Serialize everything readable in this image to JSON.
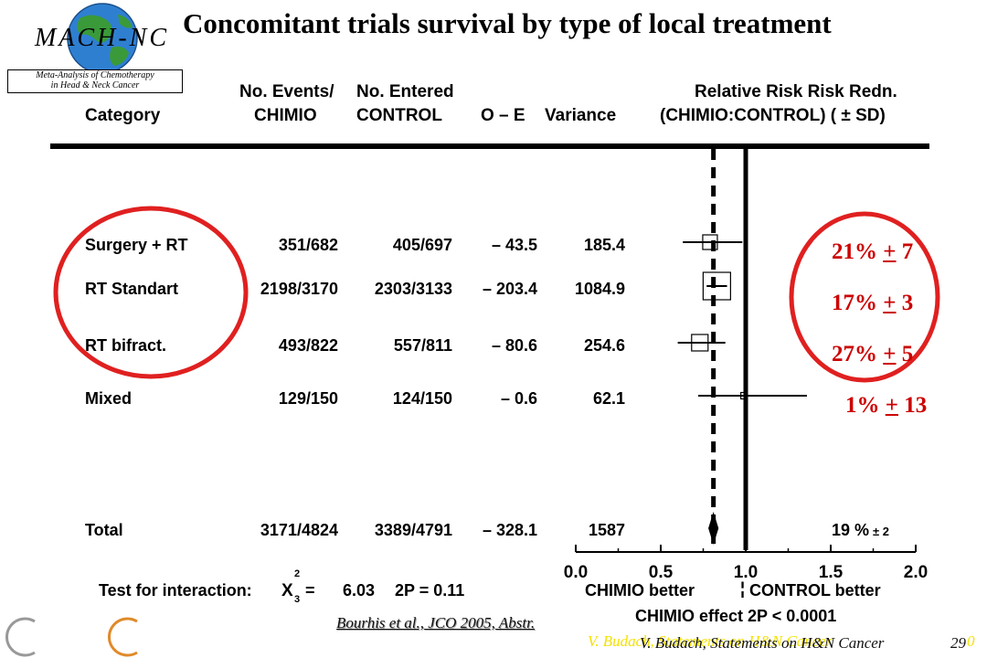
{
  "logo": {
    "name": "MACH-NC",
    "caption_line1": "Meta-Analysis of Chemotherapy",
    "caption_line2": "in Head & Neck Cancer"
  },
  "title": "Concomitant trials survival by type of local treatment",
  "headers": {
    "category": "Category",
    "events_top": "No. Events/",
    "events_bottom": "CHIMIO",
    "entered_top": "No. Entered",
    "entered_bottom": "CONTROL",
    "oe": "O – E",
    "variance": "Variance",
    "rr_top": "Relative  Risk Risk  Redn.",
    "rr_bottom": "(CHIMIO:CONTROL) (",
    "rr_sd": "± SD)"
  },
  "chart_data": {
    "type": "forest",
    "x_axis": {
      "ticks": [
        "0.0",
        "0.5",
        "1.0",
        "1.5",
        "2.0"
      ],
      "tick_values": [
        0.0,
        0.5,
        1.0,
        1.5,
        2.0
      ],
      "range": [
        0.0,
        2.0
      ],
      "label_left": "CHIMIO  better",
      "label_right": "CONTROL  better",
      "effect_label": "CHIMIO  effect  2P < 0.0001"
    },
    "null_line": 1.0,
    "overall_line": 0.81,
    "rows": [
      {
        "category": "Surgery  +  RT",
        "events": "351/682",
        "entered": "405/697",
        "oe": "– 43.5",
        "variance": "185.4",
        "hr": 0.79,
        "ci_low": 0.63,
        "ci_high": 0.98,
        "box_size": 16,
        "reduction": "21%",
        "pm": "+",
        "sd": "7"
      },
      {
        "category": "RT  Standart",
        "events": "2198/3170",
        "entered": "2303/3133",
        "oe": "– 203.4",
        "variance": "1084.9",
        "hr": 0.83,
        "ci_low": 0.77,
        "ci_high": 0.89,
        "box_size": 30,
        "reduction": "17%",
        "pm": "+",
        "sd": "3"
      },
      {
        "category": "RT  bifract.",
        "events": "493/822",
        "entered": "557/811",
        "oe": "– 80.6",
        "variance": "254.6",
        "hr": 0.73,
        "ci_low": 0.6,
        "ci_high": 0.88,
        "box_size": 18,
        "reduction": "27%",
        "pm": "+",
        "sd": "5"
      },
      {
        "category": "Mixed",
        "events": "129/150",
        "entered": "124/150",
        "oe": "– 0.6",
        "variance": "62.1",
        "hr": 0.99,
        "ci_low": 0.72,
        "ci_high": 1.36,
        "box_size": 7,
        "reduction": "1%",
        "pm": "+",
        "sd": "13"
      }
    ],
    "total": {
      "category": "Total",
      "events": "3171/4824",
      "entered": "3389/4791",
      "oe": "– 328.1",
      "variance": "1587",
      "hr": 0.81,
      "ci_low": 0.78,
      "ci_high": 0.84,
      "reduction": "19 %",
      "sd": "± 2"
    }
  },
  "interaction": {
    "label": "Test  for  interaction:",
    "stat_symbol": "X",
    "sup": "2",
    "sub": "3",
    "eq": "=",
    "value": "6.03",
    "p": "2P = 0.11"
  },
  "citation": "Bourhis et al., JCO 2005, Abstr.",
  "footer": {
    "shadow_text": "V. Budach, Statements on H&N Cancer",
    "text": "V. Budach, Statements on H&N Cancer",
    "page": "29",
    "shadow_page": "0"
  },
  "colors": {
    "circle": "#e02020",
    "rr_text": "#cc0000",
    "footer_shadow": "#f5e100",
    "c_gray": "#999999",
    "c_orange": "#e08a2a"
  }
}
